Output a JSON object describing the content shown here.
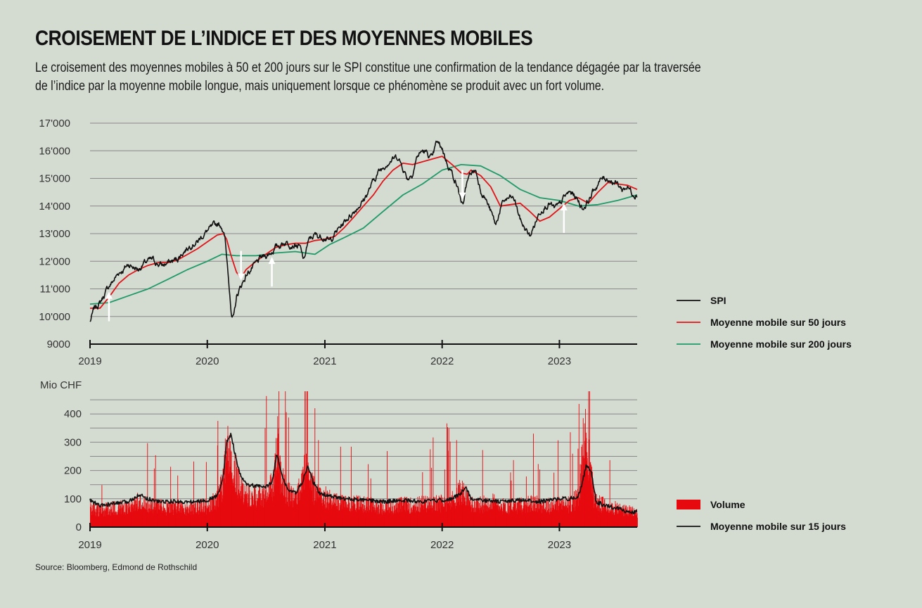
{
  "title": "CROISEMENT DE L’INDICE ET DES MOYENNES MOBILES",
  "subtitle": "Le croisement des moyennes mobiles à 50 et 200 jours sur le SPI constitue une confirmation de la tendance dégagée par la traversée de l’indice par la moyenne mobile longue, mais uniquement lorsque ce phénomène se produit avec un fort volume.",
  "source": "Source: Bloomberg, Edmond de Rothschild",
  "colors": {
    "background": "#d4dbd1",
    "spi": "#111111",
    "ma50": "#e0161b",
    "ma200": "#1f9a68",
    "volume": "#e60a0f",
    "ma15": "#111111",
    "grid": "#8a8a8a",
    "arrow": "#ffffff"
  },
  "chart_data": [
    {
      "type": "line",
      "x_ticks": [
        "2019",
        "2020",
        "2021",
        "2022",
        "2023"
      ],
      "y_ticks": [
        "9000",
        "10'000",
        "11'000",
        "12'000",
        "13'000",
        "14'000",
        "15'000",
        "16'000",
        "17'000"
      ],
      "ylim": [
        9000,
        17000
      ],
      "xlim": [
        "2019-01-01",
        "2023-08-31"
      ],
      "grid": true,
      "legend_position": "right",
      "series": [
        {
          "name": "SPI",
          "color": "#111111",
          "x": [
            "2019-01-01",
            "2019-01-15",
            "2019-02-01",
            "2019-02-15",
            "2019-03-01",
            "2019-03-15",
            "2019-04-01",
            "2019-04-15",
            "2019-05-01",
            "2019-05-15",
            "2019-06-01",
            "2019-06-15",
            "2019-07-01",
            "2019-07-15",
            "2019-08-01",
            "2019-08-15",
            "2019-09-01",
            "2019-09-15",
            "2019-10-01",
            "2019-10-15",
            "2019-11-01",
            "2019-11-15",
            "2019-12-01",
            "2019-12-15",
            "2020-01-01",
            "2020-01-15",
            "2020-02-01",
            "2020-02-15",
            "2020-02-25",
            "2020-03-05",
            "2020-03-12",
            "2020-03-16",
            "2020-03-23",
            "2020-04-01",
            "2020-04-15",
            "2020-05-01",
            "2020-05-15",
            "2020-06-01",
            "2020-06-15",
            "2020-07-01",
            "2020-07-15",
            "2020-08-01",
            "2020-08-15",
            "2020-09-01",
            "2020-09-15",
            "2020-10-01",
            "2020-10-15",
            "2020-10-28",
            "2020-11-05",
            "2020-11-15",
            "2020-12-01",
            "2020-12-15",
            "2021-01-01",
            "2021-01-15",
            "2021-02-01",
            "2021-02-15",
            "2021-03-01",
            "2021-03-15",
            "2021-04-01",
            "2021-04-15",
            "2021-05-01",
            "2021-05-15",
            "2021-06-01",
            "2021-06-15",
            "2021-07-01",
            "2021-07-15",
            "2021-08-01",
            "2021-08-15",
            "2021-09-01",
            "2021-09-15",
            "2021-10-01",
            "2021-10-15",
            "2021-11-01",
            "2021-11-15",
            "2021-12-01",
            "2021-12-15",
            "2022-01-01",
            "2022-01-15",
            "2022-02-01",
            "2022-02-15",
            "2022-03-01",
            "2022-03-08",
            "2022-03-15",
            "2022-04-01",
            "2022-04-15",
            "2022-05-01",
            "2022-05-15",
            "2022-06-01",
            "2022-06-17",
            "2022-07-01",
            "2022-07-15",
            "2022-08-01",
            "2022-08-15",
            "2022-09-01",
            "2022-09-15",
            "2022-10-01",
            "2022-10-15",
            "2022-11-01",
            "2022-11-15",
            "2022-12-01",
            "2022-12-15",
            "2023-01-01",
            "2023-01-15",
            "2023-02-01",
            "2023-02-15",
            "2023-03-01",
            "2023-03-15",
            "2023-04-01",
            "2023-04-15",
            "2023-05-01",
            "2023-05-15",
            "2023-06-01",
            "2023-06-15",
            "2023-07-01",
            "2023-07-15",
            "2023-08-01",
            "2023-08-15",
            "2023-08-31"
          ],
          "y": [
            9800,
            10300,
            10500,
            10800,
            11100,
            11300,
            11600,
            11700,
            11900,
            11800,
            11700,
            11900,
            12000,
            12050,
            11900,
            11850,
            11950,
            12000,
            12100,
            12300,
            12500,
            12650,
            12700,
            12900,
            13100,
            13200,
            13350,
            13300,
            12800,
            11700,
            10800,
            10000,
            9900,
            10700,
            11100,
            11500,
            11700,
            11900,
            12100,
            12200,
            12300,
            12500,
            12600,
            12700,
            12650,
            12600,
            12500,
            12000,
            12500,
            12800,
            12950,
            12900,
            12900,
            12700,
            13000,
            13200,
            13400,
            13600,
            13800,
            14000,
            14200,
            14500,
            14900,
            15200,
            15400,
            15600,
            15700,
            15800,
            15400,
            15000,
            15200,
            15800,
            16000,
            15900,
            15700,
            16300,
            16100,
            15600,
            15200,
            14800,
            14200,
            13900,
            14700,
            15200,
            15300,
            14600,
            14300,
            13800,
            13300,
            13900,
            14200,
            14300,
            14200,
            13500,
            13200,
            12900,
            13300,
            13800,
            14000,
            14100,
            13900,
            14000,
            14300,
            14500,
            14400,
            14200,
            13900,
            14200,
            14500,
            14800,
            15000,
            15000,
            14900,
            14800,
            14600,
            14700,
            14500,
            14400
          ]
        },
        {
          "name": "Moyenne mobile sur 50 jours",
          "color": "#e0161b",
          "x": [
            "2019-01-01",
            "2019-02-01",
            "2019-03-01",
            "2019-04-01",
            "2019-05-01",
            "2019-06-01",
            "2019-07-01",
            "2019-08-01",
            "2019-09-01",
            "2019-10-01",
            "2019-11-01",
            "2019-12-01",
            "2020-01-01",
            "2020-02-01",
            "2020-02-20",
            "2020-03-01",
            "2020-03-15",
            "2020-04-01",
            "2020-04-15",
            "2020-05-01",
            "2020-06-01",
            "2020-07-01",
            "2020-08-01",
            "2020-09-01",
            "2020-10-01",
            "2020-11-01",
            "2020-12-01",
            "2021-01-01",
            "2021-02-01",
            "2021-03-01",
            "2021-04-01",
            "2021-05-01",
            "2021-06-01",
            "2021-07-01",
            "2021-08-01",
            "2021-09-01",
            "2021-10-01",
            "2021-11-01",
            "2021-12-01",
            "2022-01-01",
            "2022-02-01",
            "2022-03-01",
            "2022-03-20",
            "2022-04-01",
            "2022-05-01",
            "2022-06-01",
            "2022-07-01",
            "2022-08-01",
            "2022-09-01",
            "2022-10-01",
            "2022-11-01",
            "2022-12-01",
            "2023-01-01",
            "2023-02-01",
            "2023-03-01",
            "2023-04-01",
            "2023-05-01",
            "2023-06-01",
            "2023-07-01",
            "2023-08-01",
            "2023-08-31"
          ],
          "y": [
            10300,
            10300,
            10700,
            11200,
            11500,
            11700,
            11850,
            11950,
            11950,
            12050,
            12250,
            12450,
            12700,
            12950,
            13000,
            12800,
            12200,
            11600,
            11400,
            11700,
            12000,
            12250,
            12500,
            12600,
            12650,
            12650,
            12750,
            12800,
            12900,
            13200,
            13600,
            14000,
            14400,
            14900,
            15300,
            15550,
            15500,
            15600,
            15700,
            15800,
            15500,
            15200,
            15150,
            15300,
            15100,
            14700,
            14000,
            14050,
            14100,
            13800,
            13450,
            13600,
            13900,
            14200,
            14300,
            14100,
            14500,
            14850,
            14800,
            14750,
            14600
          ]
        },
        {
          "name": "Moyenne mobile sur 200 jours",
          "color": "#1f9a68",
          "x": [
            "2019-01-01",
            "2019-03-01",
            "2019-05-01",
            "2019-07-01",
            "2019-09-01",
            "2019-11-01",
            "2020-01-01",
            "2020-02-15",
            "2020-04-01",
            "2020-06-01",
            "2020-08-01",
            "2020-10-01",
            "2020-12-01",
            "2021-01-15",
            "2021-03-01",
            "2021-05-01",
            "2021-07-01",
            "2021-09-01",
            "2021-11-01",
            "2022-01-01",
            "2022-03-01",
            "2022-05-01",
            "2022-07-01",
            "2022-09-01",
            "2022-11-01",
            "2023-01-01",
            "2023-03-01",
            "2023-05-01",
            "2023-07-01",
            "2023-08-31"
          ],
          "y": [
            10450,
            10500,
            10750,
            11000,
            11350,
            11700,
            12000,
            12250,
            12200,
            12200,
            12300,
            12350,
            12250,
            12600,
            12850,
            13200,
            13800,
            14400,
            14800,
            15300,
            15500,
            15450,
            15100,
            14600,
            14300,
            14200,
            14000,
            14050,
            14200,
            14400
          ]
        }
      ],
      "annotations": [
        {
          "type": "arrow",
          "direction": "up",
          "x": "2019-03-01"
        },
        {
          "type": "arrow",
          "direction": "down",
          "x": "2020-04-15"
        },
        {
          "type": "arrow",
          "direction": "up",
          "x": "2020-07-20"
        },
        {
          "type": "arrow",
          "direction": "down",
          "x": "2022-03-05"
        },
        {
          "type": "arrow",
          "direction": "up",
          "x": "2023-01-15"
        }
      ]
    },
    {
      "type": "bar",
      "ylabel": "Mio CHF",
      "x_ticks": [
        "2019",
        "2020",
        "2021",
        "2022",
        "2023"
      ],
      "y_ticks": [
        "0",
        "100",
        "200",
        "300",
        "400"
      ],
      "ylim": [
        0,
        500
      ],
      "xlim": [
        "2019-01-01",
        "2023-08-31"
      ],
      "grid": true,
      "legend_position": "right",
      "series": [
        {
          "name": "Volume",
          "color": "#e60a0f",
          "x": [
            "2019-01-01",
            "2019-02-01",
            "2019-03-01",
            "2019-04-01",
            "2019-05-01",
            "2019-06-01",
            "2019-07-01",
            "2019-08-01",
            "2019-09-01",
            "2019-10-01",
            "2019-11-01",
            "2019-12-01",
            "2020-01-01",
            "2020-02-01",
            "2020-02-20",
            "2020-03-01",
            "2020-03-10",
            "2020-03-20",
            "2020-04-01",
            "2020-04-15",
            "2020-05-01",
            "2020-06-01",
            "2020-07-01",
            "2020-07-25",
            "2020-08-05",
            "2020-08-15",
            "2020-09-01",
            "2020-10-01",
            "2020-10-20",
            "2020-11-05",
            "2020-11-20",
            "2020-12-01",
            "2021-01-01",
            "2021-02-01",
            "2021-03-01",
            "2021-04-01",
            "2021-05-01",
            "2021-06-01",
            "2021-07-01",
            "2021-08-01",
            "2021-09-01",
            "2021-10-01",
            "2021-11-01",
            "2021-12-01",
            "2022-01-01",
            "2022-02-01",
            "2022-03-01",
            "2022-04-01",
            "2022-05-01",
            "2022-06-01",
            "2022-07-01",
            "2022-08-01",
            "2022-09-01",
            "2022-10-01",
            "2022-11-01",
            "2022-12-01",
            "2023-01-01",
            "2023-02-01",
            "2023-03-01",
            "2023-03-15",
            "2023-03-25",
            "2023-04-05",
            "2023-04-20",
            "2023-05-01",
            "2023-06-01",
            "2023-07-01",
            "2023-08-01",
            "2023-08-31"
          ],
          "y": [
            90,
            80,
            85,
            95,
            100,
            120,
            100,
            95,
            90,
            95,
            90,
            95,
            100,
            130,
            220,
            380,
            420,
            300,
            230,
            180,
            150,
            140,
            150,
            200,
            390,
            260,
            160,
            140,
            190,
            300,
            210,
            150,
            140,
            120,
            110,
            115,
            105,
            100,
            95,
            95,
            105,
            100,
            110,
            105,
            115,
            125,
            170,
            110,
            105,
            120,
            100,
            95,
            100,
            110,
            105,
            100,
            110,
            105,
            140,
            380,
            420,
            260,
            130,
            110,
            95,
            85,
            75,
            65
          ]
        },
        {
          "name": "Moyenne mobile sur 15 jours",
          "color": "#111111",
          "x": [
            "2019-01-01",
            "2019-02-01",
            "2019-03-01",
            "2019-04-01",
            "2019-05-01",
            "2019-06-01",
            "2019-07-01",
            "2019-08-01",
            "2019-09-01",
            "2019-10-01",
            "2019-11-01",
            "2019-12-01",
            "2020-01-01",
            "2020-02-01",
            "2020-02-20",
            "2020-03-01",
            "2020-03-15",
            "2020-03-25",
            "2020-04-10",
            "2020-05-01",
            "2020-06-01",
            "2020-07-01",
            "2020-07-20",
            "2020-08-05",
            "2020-08-20",
            "2020-09-10",
            "2020-10-01",
            "2020-10-20",
            "2020-11-10",
            "2020-11-25",
            "2020-12-15",
            "2021-01-15",
            "2021-03-01",
            "2021-05-01",
            "2021-07-01",
            "2021-09-01",
            "2021-11-01",
            "2022-01-01",
            "2022-02-01",
            "2022-03-01",
            "2022-03-15",
            "2022-04-01",
            "2022-05-01",
            "2022-07-01",
            "2022-09-01",
            "2022-11-01",
            "2023-01-01",
            "2023-02-01",
            "2023-03-01",
            "2023-03-12",
            "2023-03-25",
            "2023-04-10",
            "2023-04-25",
            "2023-05-15",
            "2023-06-15",
            "2023-07-15",
            "2023-08-01",
            "2023-08-31"
          ],
          "y": [
            95,
            75,
            80,
            85,
            90,
            115,
            100,
            90,
            90,
            90,
            88,
            90,
            95,
            110,
            180,
            300,
            330,
            270,
            190,
            150,
            145,
            140,
            160,
            260,
            180,
            130,
            120,
            150,
            215,
            160,
            120,
            110,
            100,
            95,
            90,
            95,
            90,
            95,
            100,
            120,
            145,
            100,
            95,
            90,
            95,
            90,
            100,
            100,
            110,
            150,
            215,
            200,
            90,
            80,
            70,
            65,
            50,
            55
          ]
        }
      ]
    }
  ],
  "legend1": [
    {
      "label": "SPI",
      "color": "#111111"
    },
    {
      "label": "Moyenne mobile sur 50 jours",
      "color": "#e0161b"
    },
    {
      "label": "Moyenne mobile sur 200 jours",
      "color": "#1f9a68"
    }
  ],
  "legend2": [
    {
      "label": "Volume",
      "color": "#e60a0f",
      "kind": "box"
    },
    {
      "label": "Moyenne mobile sur 15 jours",
      "color": "#111111",
      "kind": "line"
    }
  ]
}
